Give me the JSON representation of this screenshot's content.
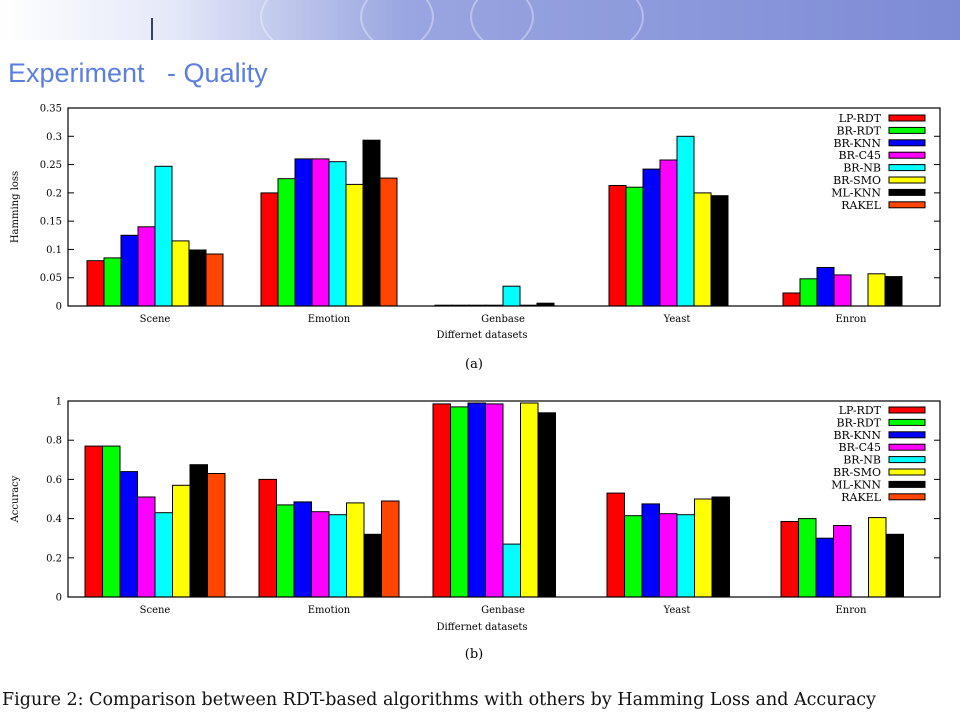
{
  "slide": {
    "title": "Experiment   - Quality",
    "caption": "Figure 2:  Comparison between RDT-based algorithms with others by Hamming Loss and Accuracy"
  },
  "colors": {
    "title": "#5b7fe0",
    "series": [
      "#ff0000",
      "#00ff00",
      "#0000ff",
      "#ff00ff",
      "#00ffff",
      "#ffff00",
      "#000000",
      "#ff4500"
    ]
  },
  "chart_data": [
    {
      "type": "bar",
      "panel_label": "(a)",
      "xlabel": "Differnet datasets",
      "ylabel": "Hamming loss",
      "categories": [
        "Scene",
        "Emotion",
        "Genbase",
        "Yeast",
        "Enron"
      ],
      "ylim": [
        0,
        0.35
      ],
      "yticks": [
        0,
        0.05,
        0.1,
        0.15,
        0.2,
        0.25,
        0.3,
        0.35
      ],
      "ytick_labels": [
        "0",
        "0.05",
        "0.1",
        "0.15",
        "0.2",
        "0.25",
        "0.3",
        "0.35"
      ],
      "legend_position": "top-right",
      "series": [
        {
          "name": "LP-RDT",
          "values": [
            0.08,
            0.2,
            0.001,
            0.213,
            0.023
          ]
        },
        {
          "name": "BR-RDT",
          "values": [
            0.085,
            0.225,
            0.001,
            0.21,
            0.048
          ]
        },
        {
          "name": "BR-KNN",
          "values": [
            0.125,
            0.26,
            0.001,
            0.242,
            0.068
          ]
        },
        {
          "name": "BR-C45",
          "values": [
            0.14,
            0.26,
            0.001,
            0.258,
            0.055
          ]
        },
        {
          "name": "BR-NB",
          "values": [
            0.247,
            0.255,
            0.035,
            0.3,
            null
          ]
        },
        {
          "name": "BR-SMO",
          "values": [
            0.115,
            0.215,
            0.001,
            0.2,
            0.057
          ]
        },
        {
          "name": "ML-KNN",
          "values": [
            0.099,
            0.293,
            0.005,
            0.195,
            0.052
          ]
        },
        {
          "name": "RAKEL",
          "values": [
            0.092,
            0.226,
            null,
            null,
            null
          ]
        }
      ]
    },
    {
      "type": "bar",
      "panel_label": "(b)",
      "xlabel": "Differnet datasets",
      "ylabel": "Accuracy",
      "categories": [
        "Scene",
        "Emotion",
        "Genbase",
        "Yeast",
        "Enron"
      ],
      "ylim": [
        0,
        1
      ],
      "yticks": [
        0,
        0.2,
        0.4,
        0.6,
        0.8,
        1
      ],
      "ytick_labels": [
        "0",
        "0.2",
        "0.4",
        "0.6",
        "0.8",
        "1"
      ],
      "legend_position": "top-right",
      "series": [
        {
          "name": "LP-RDT",
          "values": [
            0.77,
            0.6,
            0.985,
            0.53,
            0.385
          ]
        },
        {
          "name": "BR-RDT",
          "values": [
            0.77,
            0.47,
            0.97,
            0.415,
            0.4
          ]
        },
        {
          "name": "BR-KNN",
          "values": [
            0.64,
            0.485,
            0.99,
            0.475,
            0.3
          ]
        },
        {
          "name": "BR-C45",
          "values": [
            0.51,
            0.435,
            0.985,
            0.425,
            0.365
          ]
        },
        {
          "name": "BR-NB",
          "values": [
            0.43,
            0.42,
            0.27,
            0.42,
            null
          ]
        },
        {
          "name": "BR-SMO",
          "values": [
            0.57,
            0.48,
            0.99,
            0.5,
            0.405
          ]
        },
        {
          "name": "ML-KNN",
          "values": [
            0.675,
            0.32,
            0.94,
            0.51,
            0.32
          ]
        },
        {
          "name": "RAKEL",
          "values": [
            0.63,
            0.49,
            null,
            null,
            null
          ]
        }
      ]
    }
  ]
}
